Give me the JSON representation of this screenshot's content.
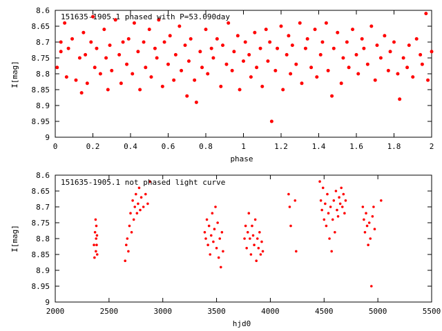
{
  "chart_data": [
    {
      "type": "scatter",
      "title": "151635-1905.1 phased with P=53.090day",
      "xlabel": "phase",
      "ylabel": "I[mag]",
      "xlim": [
        0,
        2
      ],
      "ylim": [
        9,
        8.6
      ],
      "y_inverted": true,
      "xticks": [
        "0",
        "0.2",
        "0.4",
        "0.6",
        "0.8",
        "1",
        "1.2",
        "1.4",
        "1.6",
        "1.8",
        "2"
      ],
      "yticks": [
        "8.6",
        "8.65",
        "8.7",
        "8.75",
        "8.8",
        "8.85",
        "8.9",
        "8.95",
        "9"
      ],
      "grid": false,
      "marker": "filled-circle",
      "color": "#ff0000",
      "x": [
        0.01,
        0.03,
        0.03,
        0.05,
        0.06,
        0.07,
        0.09,
        0.11,
        0.13,
        0.14,
        0.15,
        0.16,
        0.17,
        0.19,
        0.2,
        0.21,
        0.22,
        0.24,
        0.26,
        0.27,
        0.28,
        0.29,
        0.3,
        0.32,
        0.34,
        0.35,
        0.36,
        0.38,
        0.39,
        0.41,
        0.42,
        0.44,
        0.45,
        0.47,
        0.48,
        0.5,
        0.51,
        0.53,
        0.54,
        0.55,
        0.57,
        0.58,
        0.6,
        0.61,
        0.63,
        0.64,
        0.66,
        0.67,
        0.69,
        0.7,
        0.71,
        0.72,
        0.74,
        0.75,
        0.77,
        0.78,
        0.8,
        0.81,
        0.83,
        0.84,
        0.86,
        0.88,
        0.89,
        0.91,
        0.92,
        0.94,
        0.95,
        0.97,
        0.98,
        1.0,
        1.01,
        1.03,
        1.04,
        1.06,
        1.07,
        1.09,
        1.1,
        1.12,
        1.13,
        1.14,
        1.15,
        1.17,
        1.18,
        1.2,
        1.21,
        1.23,
        1.24,
        1.25,
        1.26,
        1.28,
        1.3,
        1.31,
        1.33,
        1.34,
        1.36,
        1.38,
        1.39,
        1.41,
        1.42,
        1.44,
        1.45,
        1.47,
        1.48,
        1.5,
        1.52,
        1.53,
        1.55,
        1.56,
        1.58,
        1.6,
        1.61,
        1.63,
        1.64,
        1.66,
        1.68,
        1.7,
        1.71,
        1.73,
        1.75,
        1.77,
        1.78,
        1.8,
        1.82,
        1.83,
        1.85,
        1.87,
        1.88,
        1.9,
        1.92,
        1.94,
        1.95,
        1.97,
        1.98,
        2.0
      ],
      "y": [
        8.78,
        8.7,
        8.73,
        8.64,
        8.81,
        8.72,
        8.69,
        8.82,
        8.75,
        8.86,
        8.67,
        8.74,
        8.83,
        8.7,
        8.62,
        8.78,
        8.72,
        8.8,
        8.66,
        8.75,
        8.85,
        8.71,
        8.79,
        8.63,
        8.74,
        8.83,
        8.7,
        8.77,
        8.69,
        8.8,
        8.64,
        8.73,
        8.85,
        8.7,
        8.78,
        8.66,
        8.81,
        8.72,
        8.75,
        8.63,
        8.84,
        8.7,
        8.77,
        8.68,
        8.82,
        8.74,
        8.65,
        8.79,
        8.71,
        8.87,
        8.76,
        8.69,
        8.82,
        8.89,
        8.73,
        8.78,
        8.66,
        8.8,
        8.72,
        8.75,
        8.69,
        8.84,
        8.71,
        8.77,
        8.64,
        8.79,
        8.73,
        8.68,
        8.85,
        8.76,
        8.7,
        8.74,
        8.81,
        8.67,
        8.78,
        8.72,
        8.84,
        8.66,
        8.76,
        8.7,
        8.95,
        8.79,
        8.72,
        8.65,
        8.85,
        8.74,
        8.68,
        8.8,
        8.71,
        8.77,
        8.64,
        8.83,
        8.72,
        8.69,
        8.78,
        8.66,
        8.81,
        8.74,
        8.7,
        8.64,
        8.79,
        8.87,
        8.72,
        8.67,
        8.83,
        8.75,
        8.7,
        8.78,
        8.66,
        8.74,
        8.8,
        8.69,
        8.72,
        8.77,
        8.65,
        8.82,
        8.71,
        8.75,
        8.68,
        8.79,
        8.73,
        8.7,
        8.8,
        8.88,
        8.75,
        8.78,
        8.71,
        8.81,
        8.69,
        8.74,
        8.77,
        8.61,
        8.82,
        8.73
      ],
      "annotations": [
        "151635-1905.1 phased with P=53.090day"
      ]
    },
    {
      "type": "scatter",
      "title": "151635-1905.1 not phased light curve",
      "xlabel": "hjd0",
      "ylabel": "I[mag]",
      "xlim": [
        2000,
        5500
      ],
      "ylim": [
        9,
        8.6
      ],
      "y_inverted": true,
      "xticks": [
        "2000",
        "2500",
        "3000",
        "3500",
        "4000",
        "4500",
        "5000",
        "5500"
      ],
      "yticks": [
        "8.6",
        "8.65",
        "8.7",
        "8.75",
        "8.8",
        "8.85",
        "8.9",
        "8.95",
        "9"
      ],
      "grid": false,
      "marker": "filled-circle",
      "color": "#ff0000",
      "x": [
        2360,
        2365,
        2370,
        2375,
        2378,
        2380,
        2382,
        2385,
        2388,
        2390,
        2650,
        2660,
        2670,
        2680,
        2690,
        2700,
        2710,
        2720,
        2730,
        2740,
        2750,
        2760,
        2770,
        2780,
        2790,
        2800,
        2820,
        2840,
        2860,
        2880,
        3390,
        3400,
        3410,
        3420,
        3430,
        3440,
        3450,
        3460,
        3470,
        3480,
        3490,
        3500,
        3510,
        3520,
        3530,
        3540,
        3550,
        3560,
        3760,
        3770,
        3780,
        3790,
        3800,
        3810,
        3820,
        3830,
        3840,
        3850,
        3860,
        3870,
        3880,
        3890,
        3900,
        3910,
        3920,
        3930,
        4170,
        4180,
        4190,
        4230,
        4240,
        4460,
        4470,
        4480,
        4490,
        4500,
        4510,
        4520,
        4530,
        4540,
        4550,
        4560,
        4570,
        4580,
        4590,
        4600,
        4610,
        4620,
        4630,
        4640,
        4650,
        4660,
        4670,
        4680,
        4690,
        4700,
        4860,
        4870,
        4880,
        4890,
        4900,
        4910,
        4920,
        4930,
        4940,
        4950,
        4960,
        4970,
        5030
      ],
      "y": [
        8.82,
        8.86,
        8.78,
        8.74,
        8.84,
        8.8,
        8.76,
        8.82,
        8.79,
        8.85,
        8.87,
        8.82,
        8.8,
        8.84,
        8.76,
        8.72,
        8.78,
        8.68,
        8.74,
        8.7,
        8.66,
        8.72,
        8.69,
        8.64,
        8.71,
        8.67,
        8.7,
        8.66,
        8.69,
        8.62,
        8.78,
        8.8,
        8.74,
        8.82,
        8.76,
        8.85,
        8.79,
        8.72,
        8.81,
        8.77,
        8.7,
        8.83,
        8.75,
        8.86,
        8.8,
        8.89,
        8.78,
        8.84,
        8.8,
        8.76,
        8.83,
        8.78,
        8.72,
        8.8,
        8.85,
        8.76,
        8.79,
        8.82,
        8.74,
        8.87,
        8.8,
        8.83,
        8.78,
        8.85,
        8.81,
        8.84,
        8.66,
        8.7,
        8.76,
        8.68,
        8.84,
        8.62,
        8.68,
        8.71,
        8.64,
        8.74,
        8.69,
        8.76,
        8.66,
        8.72,
        8.8,
        8.7,
        8.84,
        8.74,
        8.68,
        8.78,
        8.65,
        8.71,
        8.73,
        8.67,
        8.69,
        8.64,
        8.7,
        8.66,
        8.72,
        8.68,
        8.7,
        8.74,
        8.78,
        8.72,
        8.76,
        8.82,
        8.75,
        8.8,
        8.95,
        8.73,
        8.7,
        8.77,
        8.68
      ]
    }
  ]
}
